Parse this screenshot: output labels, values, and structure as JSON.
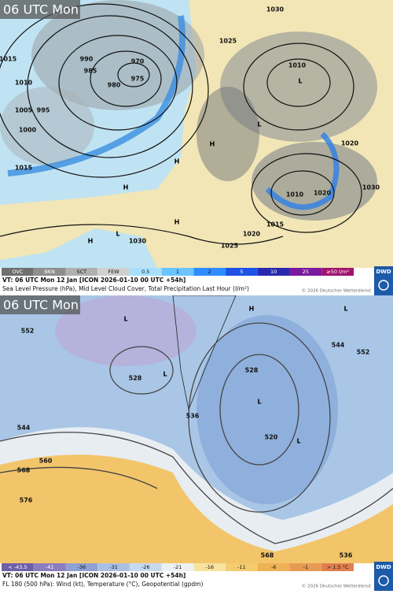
{
  "panels": [
    {
      "time_label": "06 UTC Mon",
      "legend": {
        "cloud": [
          "OVC",
          "BKN",
          "SCT",
          "FEW"
        ],
        "precip": [
          "0.5",
          "1",
          "2",
          "5",
          "10",
          "25",
          "≥50 l/m²"
        ]
      },
      "valid_time": "VT: 06 UTC Mon  12 Jan [ICON 2026-01-10 00 UTC +54h]",
      "description": "Sea Level Pressure (hPa), Mid Level Cloud Cover, Total Precipitation Last Hour (l/m²)",
      "copyright": "© 2026 Deutscher Wetterdienst",
      "logo": "DWD",
      "map_labels": [
        "1015",
        "1010",
        "1005",
        "1000",
        "995",
        "990",
        "985",
        "980",
        "975",
        "970",
        "1030",
        "1025",
        "1010",
        "1020",
        "1015",
        "1025",
        "1020",
        "1030",
        "1020",
        "L",
        "L",
        "H",
        "H",
        "H",
        "L",
        "H",
        "H",
        "1030",
        "1010",
        "1015"
      ]
    },
    {
      "time_label": "06 UTC Mon",
      "legend": {
        "temperature": [
          "< -43.5",
          "-41",
          "-36",
          "-31",
          "-26",
          "-21",
          "-16",
          "-11",
          "-6",
          "-1",
          "> 1.5 °C"
        ]
      },
      "valid_time": "VT: 06 UTC Mon  12 Jan [ICON 2026-01-10 00 UTC +54h]",
      "description": "FL 180 (500 hPa): Wind (kt), Temperature (°C), Geopotential (gpdm)",
      "copyright": "© 2026 Deutscher Wetterdienst",
      "logo": "DWD",
      "map_labels": [
        "552",
        "544",
        "560",
        "568",
        "576",
        "528",
        "536",
        "520",
        "528",
        "544",
        "552",
        "568",
        "536",
        "L",
        "L",
        "L",
        "L",
        "L",
        "H"
      ]
    }
  ]
}
